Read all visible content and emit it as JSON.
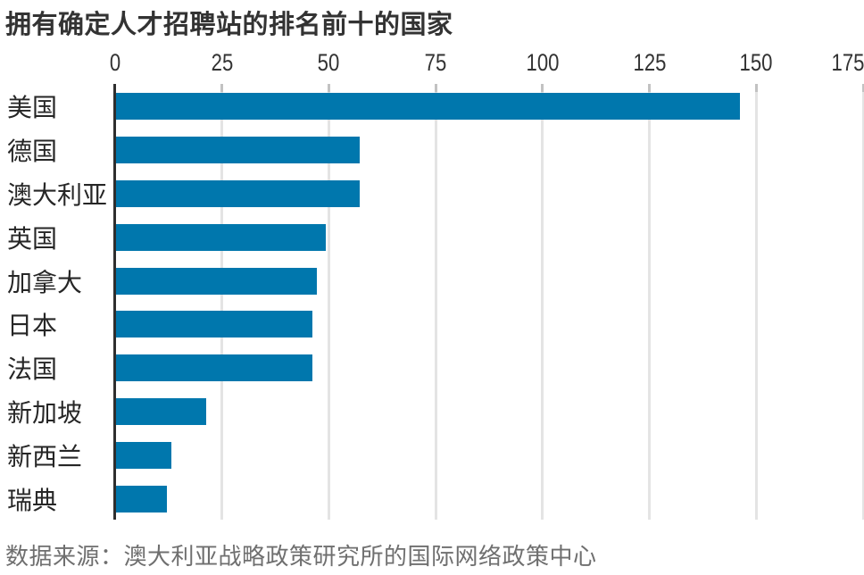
{
  "title": "拥有确定人才招聘站的排名前十的国家",
  "source": "数据来源：澳大利亚战略政策研究所的国际网络政策中心",
  "colors": {
    "bar": "#0077ad",
    "axis_line": "#2e2e2e",
    "gridline": "#e4e4e4",
    "tick_mark": "#c2c2c2",
    "title_text": "#333333",
    "category_text": "#262626",
    "tick_text": "#333333",
    "source_text": "#6f6f6f",
    "background": "#ffffff"
  },
  "chart_data": {
    "type": "bar",
    "orientation": "horizontal",
    "title": "拥有确定人才招聘站的排名前十的国家",
    "categories": [
      "美国",
      "德国",
      "澳大利亚",
      "英国",
      "加拿大",
      "日本",
      "法国",
      "新加坡",
      "新西兰",
      "瑞典"
    ],
    "values": [
      146,
      57,
      57,
      49,
      47,
      46,
      46,
      21,
      13,
      12
    ],
    "xlabel": "",
    "ylabel": "",
    "xlim": [
      0,
      175
    ],
    "xticks": [
      0,
      25,
      50,
      75,
      100,
      125,
      150,
      175
    ],
    "grid": "vertical-only",
    "legend": "none",
    "source": "数据来源：澳大利亚战略政策研究所的国际网络政策中心"
  }
}
